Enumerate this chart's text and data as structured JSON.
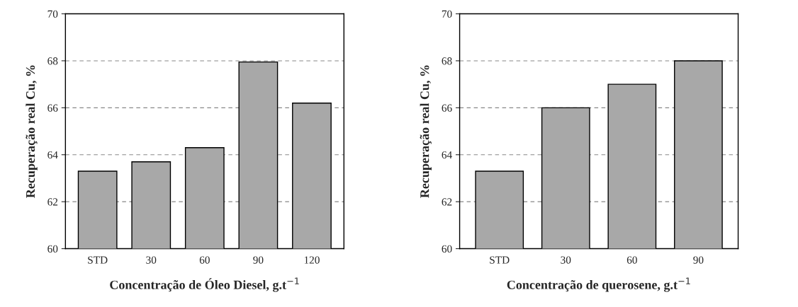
{
  "chart_data": [
    {
      "type": "bar",
      "categories": [
        "STD",
        "30",
        "60",
        "90",
        "120"
      ],
      "values": [
        63.3,
        63.7,
        64.3,
        67.95,
        66.2
      ],
      "color": "#a8a8a8",
      "ylim": [
        60,
        70
      ],
      "yticks": [
        60,
        62,
        64,
        66,
        68,
        70
      ],
      "grid": "y",
      "xlabel": "Concentração de Óleo Diesel, g.t$^{−1}$",
      "ylabel": "Recuperação real Cu, %"
    },
    {
      "type": "bar",
      "categories": [
        "STD",
        "30",
        "60",
        "90"
      ],
      "values": [
        63.3,
        66.0,
        67.0,
        68.0
      ],
      "color": "#a8a8a8",
      "ylim": [
        60,
        70
      ],
      "yticks": [
        60,
        62,
        64,
        66,
        68,
        70
      ],
      "grid": "y",
      "xlabel": "Concentração de querosene, g.t$^{−1}$",
      "ylabel": "Recuperação real Cu, %"
    }
  ]
}
